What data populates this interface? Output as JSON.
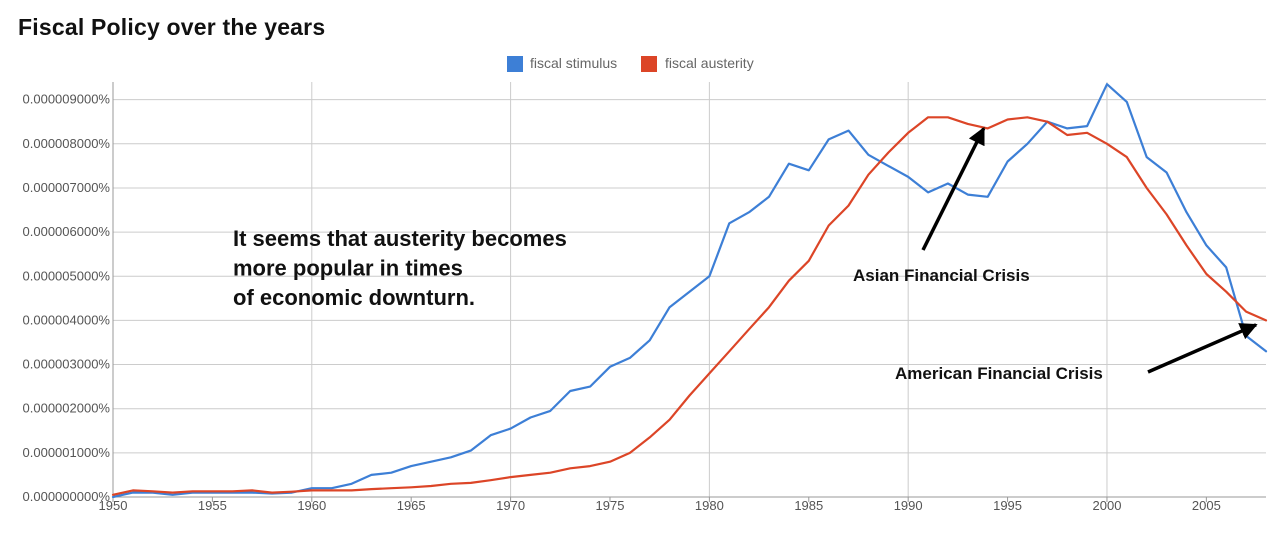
{
  "chart_data": {
    "type": "line",
    "title": "Fiscal Policy over the years",
    "xlabel": "",
    "ylabel": "",
    "xlim": [
      1950,
      2008
    ],
    "ylim": [
      0,
      9.4e-11
    ],
    "grid": true,
    "legend_position": "top-center",
    "x_ticks": [
      1950,
      1955,
      1960,
      1965,
      1970,
      1975,
      1980,
      1985,
      1990,
      1995,
      2000,
      2005
    ],
    "x_tick_labels": [
      "1950",
      "1955",
      "1960",
      "1965",
      "1970",
      "1975",
      "1980",
      "1985",
      "1990",
      "1995",
      "2000",
      "2005"
    ],
    "y_ticks": [
      0,
      1e-11,
      2e-11,
      3e-11,
      4e-11,
      5e-11,
      6e-11,
      7e-11,
      8e-11,
      9e-11
    ],
    "y_tick_labels": [
      "0.000000000%",
      "0.000001000%",
      "0.000002000%",
      "0.000003000%",
      "0.000004000%",
      "0.000005000%",
      "0.000006000%",
      "0.000007000%",
      "0.000008000%",
      "0.000009000%"
    ],
    "x": [
      1950,
      1951,
      1952,
      1953,
      1954,
      1955,
      1956,
      1957,
      1958,
      1959,
      1960,
      1961,
      1962,
      1963,
      1964,
      1965,
      1966,
      1967,
      1968,
      1969,
      1970,
      1971,
      1972,
      1973,
      1974,
      1975,
      1976,
      1977,
      1978,
      1979,
      1980,
      1981,
      1982,
      1983,
      1984,
      1985,
      1986,
      1987,
      1988,
      1989,
      1990,
      1991,
      1992,
      1993,
      1994,
      1995,
      1996,
      1997,
      1998,
      1999,
      2000,
      2001,
      2002,
      2003,
      2004,
      2005,
      2006,
      2007,
      2008
    ],
    "series": [
      {
        "name": "fiscal stimulus",
        "color": "#3d7fd6",
        "values": [
          0.0,
          1e-12,
          1e-12,
          5e-13,
          1e-12,
          1e-12,
          1e-12,
          1e-12,
          8e-13,
          1e-12,
          2e-12,
          2e-12,
          3e-12,
          5e-12,
          5.5e-12,
          7e-12,
          8e-12,
          9e-12,
          1.05e-11,
          1.4e-11,
          1.55e-11,
          1.8e-11,
          1.95e-11,
          2.4e-11,
          2.5e-11,
          2.95e-11,
          3.15e-11,
          3.55e-11,
          4.3e-11,
          4.65e-11,
          5e-11,
          6.2e-11,
          6.45e-11,
          6.8e-11,
          7.55e-11,
          7.4e-11,
          8.1e-11,
          8.3e-11,
          7.75e-11,
          7.5e-11,
          7.25e-11,
          6.9e-11,
          7.1e-11,
          6.85e-11,
          6.8e-11,
          7.6e-11,
          8e-11,
          8.5e-11,
          8.35e-11,
          8.4e-11,
          9.35e-11,
          8.95e-11,
          7.7e-11,
          7.35e-11,
          6.45e-11,
          5.7e-11,
          5.2e-11,
          3.65e-11,
          3.3e-11
        ]
      },
      {
        "name": "fiscal austerity",
        "color": "#dc4527",
        "values": [
          5e-13,
          1.5e-12,
          1.3e-12,
          1e-12,
          1.3e-12,
          1.3e-12,
          1.3e-12,
          1.5e-12,
          1e-12,
          1.2e-12,
          1.5e-12,
          1.5e-12,
          1.5e-12,
          1.8e-12,
          2e-12,
          2.2e-12,
          2.5e-12,
          3e-12,
          3.2e-12,
          3.8e-12,
          4.5e-12,
          5e-12,
          5.5e-12,
          6.5e-12,
          7e-12,
          8e-12,
          1e-11,
          1.35e-11,
          1.75e-11,
          2.3e-11,
          2.8e-11,
          3.3e-11,
          3.8e-11,
          4.3e-11,
          4.9e-11,
          5.35e-11,
          6.15e-11,
          6.6e-11,
          7.3e-11,
          7.8e-11,
          8.25e-11,
          8.6e-11,
          8.6e-11,
          8.45e-11,
          8.35e-11,
          8.55e-11,
          8.6e-11,
          8.5e-11,
          8.2e-11,
          8.25e-11,
          8e-11,
          7.7e-11,
          7e-11,
          6.4e-11,
          5.7e-11,
          5.05e-11,
          4.65e-11,
          4.2e-11,
          4e-11
        ]
      }
    ],
    "annotations": [
      {
        "text_lines": [
          "It seems that austerity becomes",
          "more popular in times",
          "of economic downturn."
        ],
        "has_arrow": false
      },
      {
        "text_lines": [
          "Asian Financial Crisis"
        ],
        "has_arrow": true,
        "arrow_target": {
          "x": 1993.8,
          "y": 8.35e-11
        }
      },
      {
        "text_lines": [
          "American Financial Crisis"
        ],
        "has_arrow": true,
        "arrow_target": {
          "x": 2007.5,
          "y": 3.9e-11
        }
      }
    ]
  }
}
